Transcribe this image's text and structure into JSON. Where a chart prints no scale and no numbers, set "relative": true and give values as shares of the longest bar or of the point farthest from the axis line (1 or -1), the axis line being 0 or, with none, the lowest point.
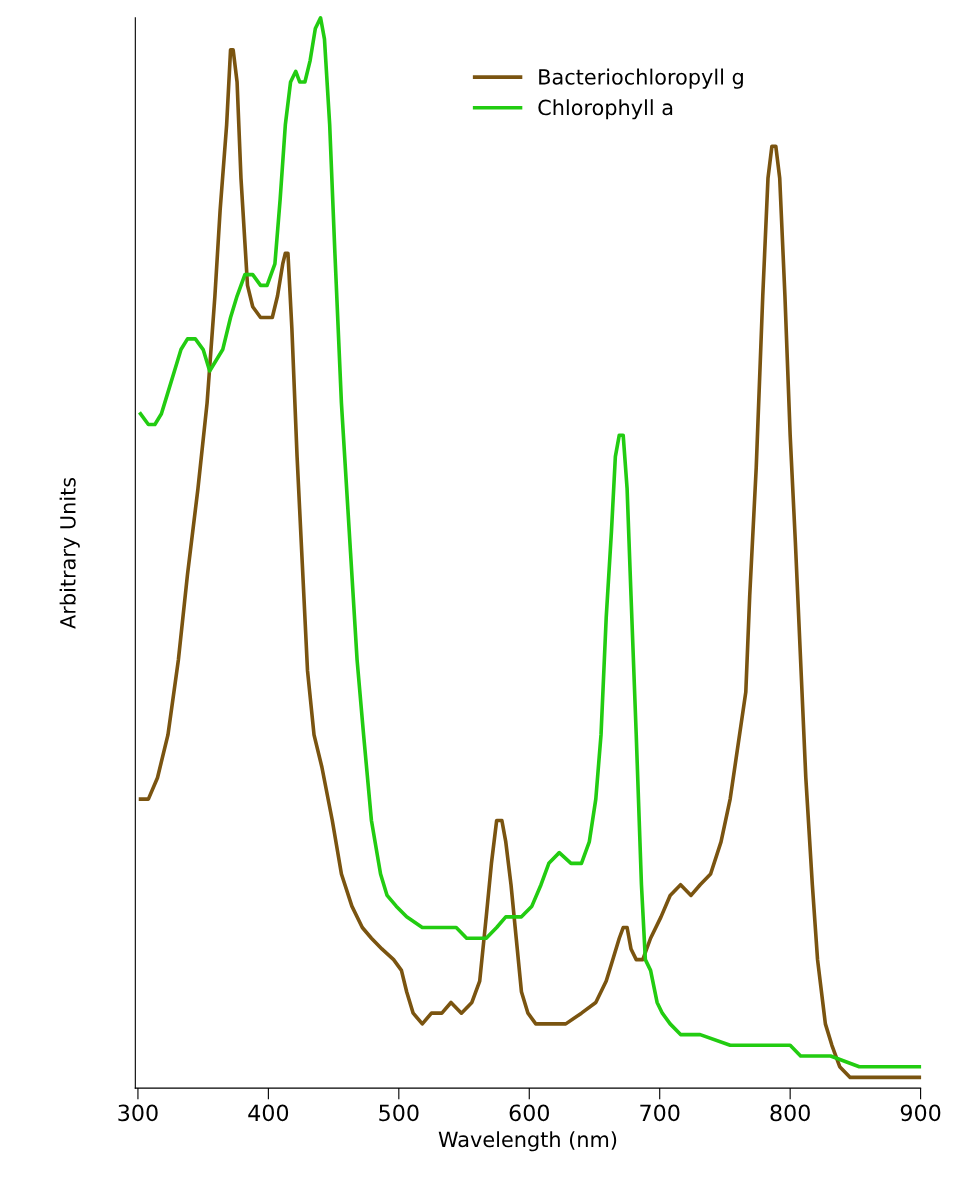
{
  "chart_data": {
    "type": "line",
    "xlabel": "Wavelength (nm)",
    "ylabel": "Arbitrary Units",
    "relative": true,
    "xlim": [
      298,
      900
    ],
    "xticks": [
      300,
      400,
      500,
      600,
      700,
      800,
      900
    ],
    "grid": false,
    "legend": "top right",
    "marker": "none",
    "line_style": "solid",
    "series": [
      {
        "name": "Bacteriochloropyll g",
        "color": "#7a5410",
        "x": [
          302,
          308,
          315,
          323,
          331,
          338,
          346,
          353,
          359,
          363,
          368,
          371,
          373,
          376,
          379,
          382,
          384,
          388,
          394,
          399,
          403,
          407,
          411,
          413,
          415,
          418,
          422,
          426,
          430,
          435,
          441,
          449,
          456,
          464,
          472,
          479,
          487,
          496,
          502,
          506,
          511,
          518,
          525,
          533,
          540,
          548,
          556,
          562,
          567,
          571,
          575,
          579,
          582,
          586,
          590,
          594,
          599,
          605,
          617,
          628,
          640,
          651,
          659,
          664,
          669,
          672,
          675,
          678,
          682,
          687,
          693,
          701,
          708,
          716,
          724,
          731,
          739,
          747,
          754,
          760,
          766,
          769,
          774,
          779,
          783,
          786,
          789,
          792,
          796,
          800,
          804,
          808,
          812,
          817,
          821,
          827,
          832,
          838,
          846,
          861,
          876,
          899
        ],
        "values": [
          0.27,
          0.27,
          0.29,
          0.33,
          0.4,
          0.48,
          0.56,
          0.64,
          0.74,
          0.82,
          0.9,
          0.97,
          0.97,
          0.94,
          0.85,
          0.79,
          0.75,
          0.73,
          0.72,
          0.72,
          0.72,
          0.74,
          0.77,
          0.78,
          0.78,
          0.71,
          0.59,
          0.49,
          0.39,
          0.33,
          0.3,
          0.25,
          0.2,
          0.17,
          0.15,
          0.14,
          0.13,
          0.12,
          0.11,
          0.09,
          0.07,
          0.06,
          0.07,
          0.07,
          0.08,
          0.07,
          0.08,
          0.1,
          0.16,
          0.21,
          0.25,
          0.25,
          0.23,
          0.19,
          0.14,
          0.09,
          0.07,
          0.06,
          0.06,
          0.06,
          0.07,
          0.08,
          0.1,
          0.12,
          0.14,
          0.15,
          0.15,
          0.13,
          0.12,
          0.12,
          0.14,
          0.16,
          0.18,
          0.19,
          0.18,
          0.19,
          0.2,
          0.23,
          0.27,
          0.32,
          0.37,
          0.46,
          0.58,
          0.74,
          0.85,
          0.88,
          0.88,
          0.85,
          0.74,
          0.61,
          0.51,
          0.4,
          0.29,
          0.19,
          0.12,
          0.06,
          0.04,
          0.02,
          0.01,
          0.01,
          0.01,
          0.01
        ]
      },
      {
        "name": "Chlorophyll a",
        "color": "#22cc11",
        "x": [
          302,
          308,
          313,
          318,
          323,
          328,
          333,
          338,
          344,
          350,
          355,
          360,
          365,
          371,
          376,
          382,
          388,
          394,
          399,
          405,
          409,
          413,
          417,
          421,
          424,
          428,
          432,
          436,
          440,
          443,
          447,
          451,
          456,
          463,
          468,
          473,
          479,
          486,
          491,
          498,
          506,
          518,
          533,
          544,
          552,
          560,
          567,
          575,
          582,
          594,
          602,
          609,
          615,
          623,
          632,
          640,
          646,
          651,
          655,
          659,
          663,
          666,
          669,
          672,
          675,
          678,
          682,
          686,
          689,
          693,
          698,
          702,
          708,
          716,
          731,
          754,
          777,
          792,
          800,
          808,
          831,
          853,
          876,
          899
        ],
        "values": [
          0.63,
          0.62,
          0.62,
          0.63,
          0.65,
          0.67,
          0.69,
          0.7,
          0.7,
          0.69,
          0.67,
          0.68,
          0.69,
          0.72,
          0.74,
          0.76,
          0.76,
          0.75,
          0.75,
          0.77,
          0.83,
          0.9,
          0.94,
          0.95,
          0.94,
          0.94,
          0.96,
          0.99,
          1.0,
          0.98,
          0.9,
          0.78,
          0.64,
          0.5,
          0.4,
          0.33,
          0.25,
          0.2,
          0.18,
          0.17,
          0.16,
          0.15,
          0.15,
          0.15,
          0.14,
          0.14,
          0.14,
          0.15,
          0.16,
          0.16,
          0.17,
          0.19,
          0.21,
          0.22,
          0.21,
          0.21,
          0.23,
          0.27,
          0.33,
          0.44,
          0.52,
          0.59,
          0.61,
          0.61,
          0.56,
          0.46,
          0.33,
          0.19,
          0.12,
          0.11,
          0.08,
          0.07,
          0.06,
          0.05,
          0.05,
          0.04,
          0.04,
          0.04,
          0.04,
          0.03,
          0.03,
          0.02,
          0.02,
          0.02
        ]
      }
    ]
  }
}
